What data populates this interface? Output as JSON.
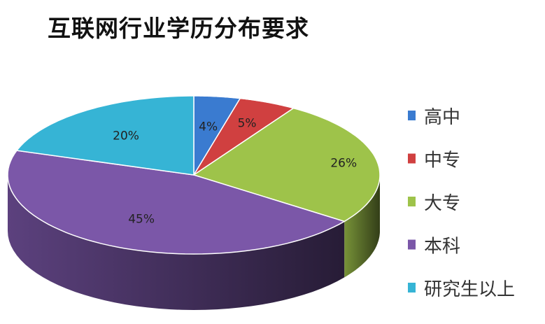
{
  "chart_data": {
    "type": "pie",
    "style": "3d",
    "title": "互联网行业学历分布要求",
    "categories": [
      "高中",
      "中专",
      "大专",
      "本科",
      "研究生以上"
    ],
    "values": [
      4,
      5,
      26,
      45,
      20
    ],
    "data_labels": [
      "4%",
      "5%",
      "26%",
      "45%",
      "20%"
    ],
    "colors": [
      "#3a7bd0",
      "#d04040",
      "#9ec34a",
      "#7b57a8",
      "#36b4d5"
    ],
    "legend_position": "right"
  }
}
